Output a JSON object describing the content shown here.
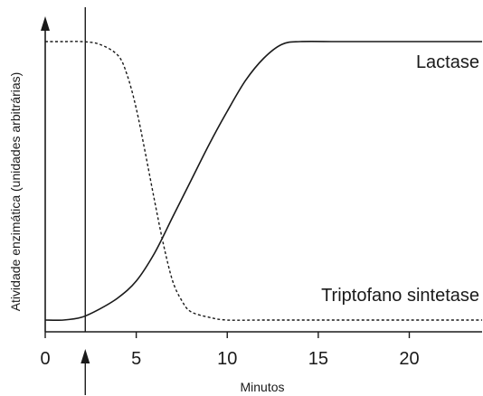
{
  "chart_data": {
    "type": "line",
    "title": "",
    "xlabel": "Minutos",
    "ylabel": "Atividade enzimática (unidades arbitrárias)",
    "xlim": [
      0,
      24
    ],
    "ylim": [
      0,
      1
    ],
    "x_ticks": [
      0,
      5,
      10,
      15,
      20
    ],
    "x_tick_labels": [
      "0",
      "5",
      "10",
      "15",
      "20"
    ],
    "grid": false,
    "legend": "inline labels",
    "marker_x": 2.2,
    "series": [
      {
        "name": "Lactase",
        "style": "solid",
        "x": [
          0,
          1,
          2,
          3,
          4,
          5,
          6,
          7,
          8,
          9,
          10,
          11,
          12,
          13,
          14,
          16,
          18,
          20,
          22,
          24
        ],
        "y": [
          0.0,
          0.0,
          0.01,
          0.04,
          0.08,
          0.14,
          0.24,
          0.37,
          0.5,
          0.63,
          0.75,
          0.86,
          0.94,
          0.99,
          1.0,
          1.0,
          1.0,
          1.0,
          1.0,
          1.0
        ]
      },
      {
        "name": "Triptofano sintetase",
        "style": "dashed",
        "x": [
          0,
          1,
          2,
          3,
          4,
          4.5,
          5,
          5.5,
          6,
          6.5,
          7,
          7.5,
          8,
          9,
          10,
          12,
          16,
          20,
          24
        ],
        "y": [
          1.0,
          1.0,
          1.0,
          0.99,
          0.95,
          0.88,
          0.76,
          0.6,
          0.43,
          0.27,
          0.14,
          0.07,
          0.03,
          0.01,
          0.0,
          0.0,
          0.0,
          0.0,
          0.0
        ]
      }
    ]
  }
}
